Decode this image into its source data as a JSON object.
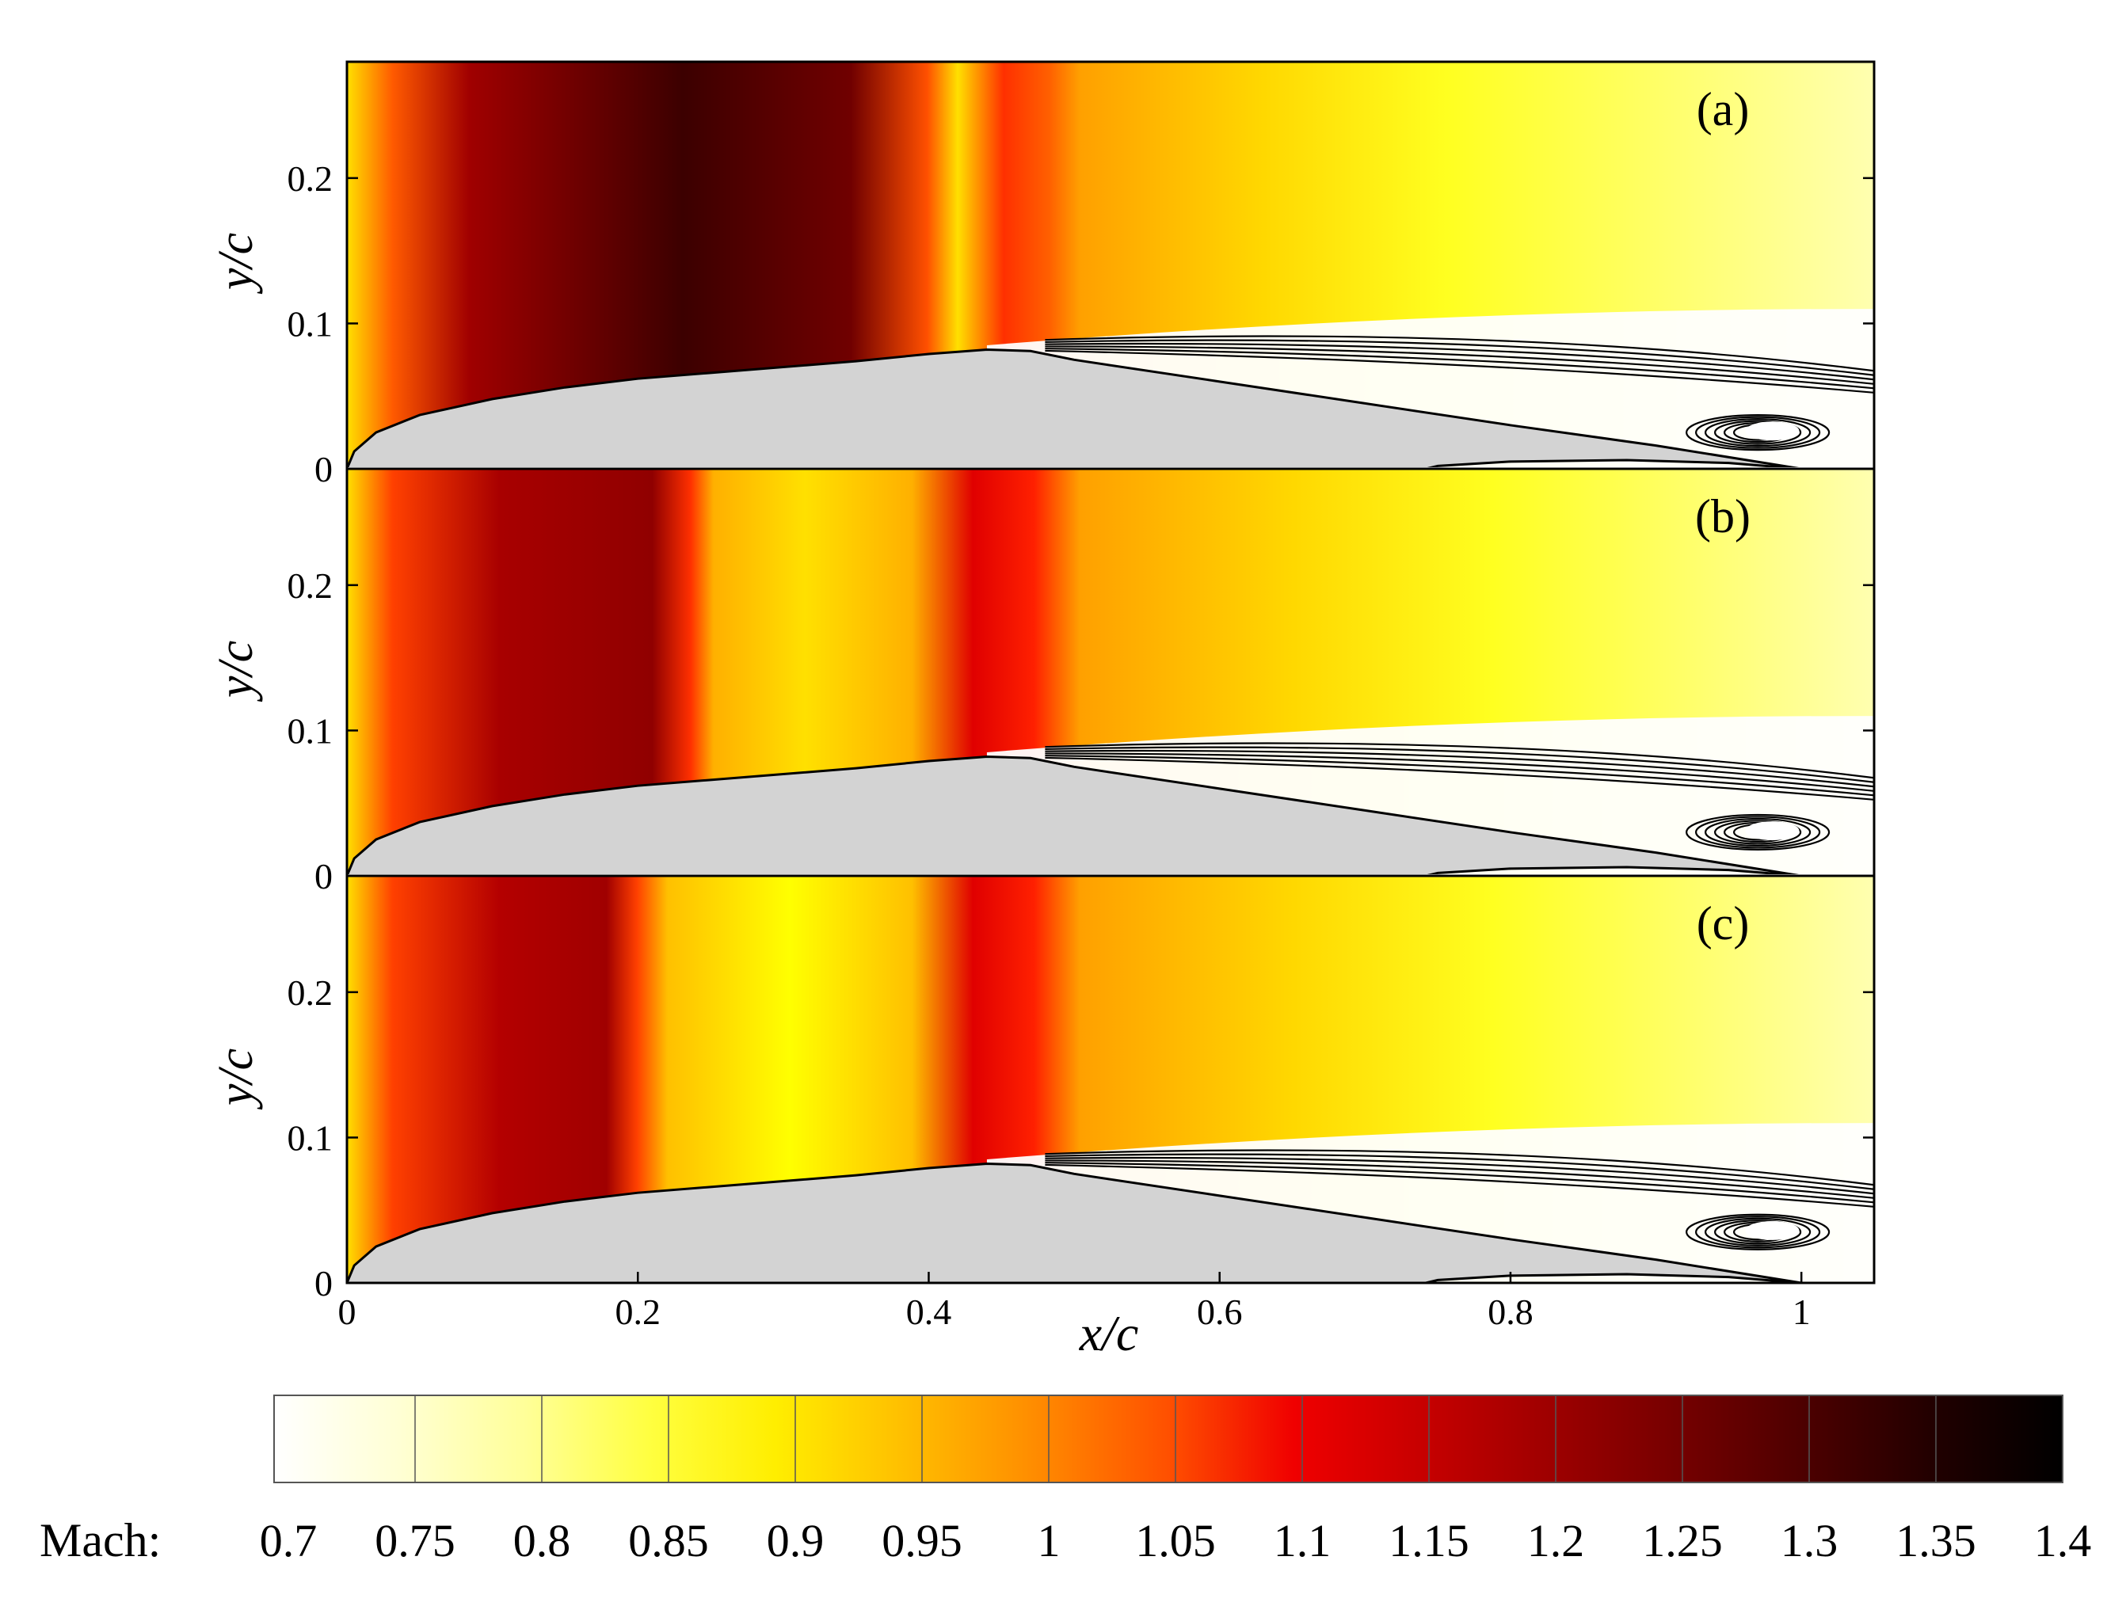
{
  "chart_data": {
    "type": "heatmap",
    "description_free": true,
    "quantity": "Mach",
    "colorbar": {
      "label": "Mach:",
      "ticks": [
        "0.7",
        "0.75",
        "0.8",
        "0.85",
        "0.9",
        "0.95",
        "1",
        "1.05",
        "1.1",
        "1.15",
        "1.2",
        "1.25",
        "1.3",
        "1.35",
        "1.4"
      ],
      "range": [
        0.7,
        1.4
      ],
      "colors": [
        "#ffffff",
        "#ffffd4",
        "#ffff99",
        "#ffff00",
        "#ffd200",
        "#ffae00",
        "#ff7800",
        "#ff2a00",
        "#e00000",
        "#b40000",
        "#8c0000",
        "#640000",
        "#3c0000",
        "#1a0000",
        "#000000"
      ]
    },
    "xlabel": "x/c",
    "ylabel": "y/c",
    "xlim": [
      0,
      1.05
    ],
    "ylim": [
      0,
      0.28
    ],
    "xticks": [
      "0",
      "0.2",
      "0.4",
      "0.6",
      "0.8",
      "1"
    ],
    "yticks": [
      "0",
      "0.1",
      "0.2"
    ],
    "panels": [
      {
        "label": "(a)"
      },
      {
        "label": "(b)"
      },
      {
        "label": "(c)"
      }
    ]
  }
}
